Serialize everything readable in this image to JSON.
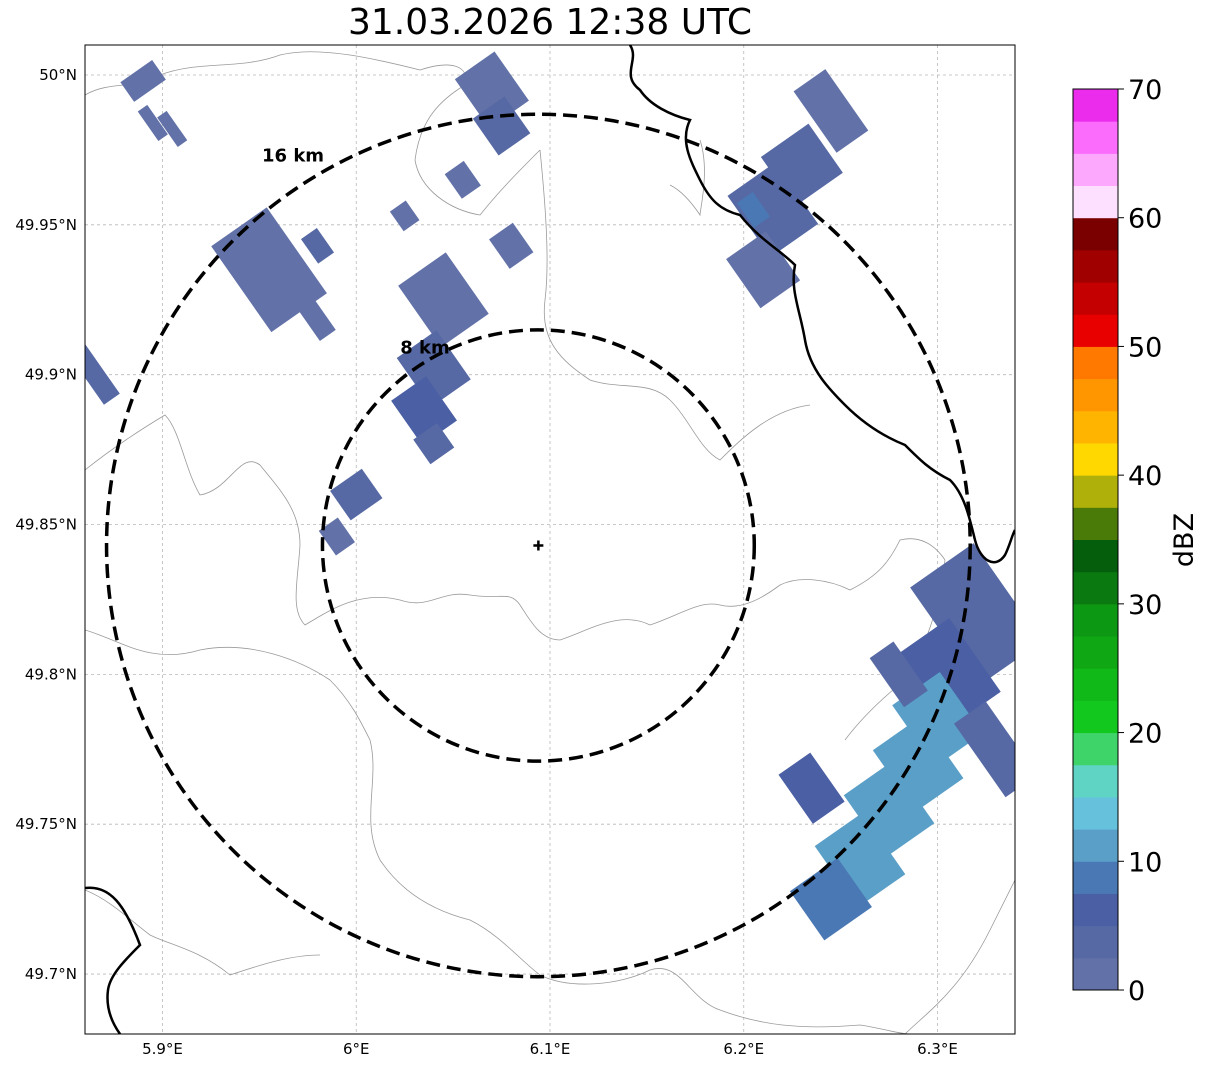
{
  "title": "31.03.2026 12:38 UTC",
  "map": {
    "lon_range": [
      5.86,
      6.34
    ],
    "lat_range": [
      49.68,
      50.01
    ],
    "grid": true,
    "lon_ticks": [
      {
        "value": 5.9,
        "label": "5.9°E"
      },
      {
        "value": 6.0,
        "label": "6°E"
      },
      {
        "value": 6.1,
        "label": "6.1°E"
      },
      {
        "value": 6.2,
        "label": "6.2°E"
      },
      {
        "value": 6.3,
        "label": "6.3°E"
      }
    ],
    "lat_ticks": [
      {
        "value": 50.0,
        "label": "50°N"
      },
      {
        "value": 49.95,
        "label": "49.95°N"
      },
      {
        "value": 49.9,
        "label": "49.9°N"
      },
      {
        "value": 49.85,
        "label": "49.85°N"
      },
      {
        "value": 49.8,
        "label": "49.8°N"
      },
      {
        "value": 49.75,
        "label": "49.75°N"
      },
      {
        "value": 49.7,
        "label": "49.7°N"
      }
    ],
    "radar_site": {
      "lon": 6.094,
      "lat": 49.843,
      "marker": "plus-marker"
    },
    "range_rings": [
      {
        "radius_km": 8,
        "label": "8 km"
      },
      {
        "radius_km": 16,
        "label": "16 km"
      }
    ]
  },
  "colorbar": {
    "label": "dBZ",
    "min": 0,
    "max": 70,
    "tick_labels": [
      "0",
      "10",
      "20",
      "30",
      "40",
      "50",
      "60",
      "70"
    ],
    "tick_values": [
      0,
      10,
      20,
      30,
      40,
      50,
      60,
      70
    ],
    "colors": [
      "#6272a8",
      "#5669a4",
      "#4a5fa4",
      "#4a78b4",
      "#5a9fc8",
      "#66c2dc",
      "#5fd4c4",
      "#3fd46a",
      "#12c81e",
      "#10b818",
      "#0fa814",
      "#0d9814",
      "#0a7a10",
      "#055e0c",
      "#4a7a08",
      "#b0b00a",
      "#ffd800",
      "#ffb400",
      "#ff9600",
      "#ff7800",
      "#e80000",
      "#c40000",
      "#a00000",
      "#7a0000",
      "#fde0ff",
      "#fca8fc",
      "#fc6cfc",
      "#ec2cec"
    ]
  },
  "echoes": [
    {
      "name": "echo-nw-1",
      "lon": 5.89,
      "lat": 49.998,
      "w": 0.02,
      "h": 0.008,
      "dbz": 1
    },
    {
      "name": "echo-nw-2",
      "lon": 5.895,
      "lat": 49.984,
      "w": 0.006,
      "h": 0.012,
      "dbz": 2
    },
    {
      "name": "echo-nw-3",
      "lon": 5.905,
      "lat": 49.982,
      "w": 0.006,
      "h": 0.012,
      "dbz": 2
    },
    {
      "name": "echo-nw-4",
      "lon": 5.955,
      "lat": 49.935,
      "w": 0.035,
      "h": 0.035,
      "dbz": 1
    },
    {
      "name": "echo-nw-5",
      "lon": 5.98,
      "lat": 49.943,
      "w": 0.01,
      "h": 0.01,
      "dbz": 3
    },
    {
      "name": "echo-nw-6",
      "lon": 5.98,
      "lat": 49.918,
      "w": 0.01,
      "h": 0.012,
      "dbz": 2
    },
    {
      "name": "echo-n-1",
      "lon": 6.07,
      "lat": 49.995,
      "w": 0.025,
      "h": 0.02,
      "dbz": 2
    },
    {
      "name": "echo-n-2",
      "lon": 6.075,
      "lat": 49.983,
      "w": 0.02,
      "h": 0.015,
      "dbz": 4
    },
    {
      "name": "echo-n-3",
      "lon": 6.055,
      "lat": 49.965,
      "w": 0.012,
      "h": 0.01,
      "dbz": 2
    },
    {
      "name": "echo-n-4",
      "lon": 6.08,
      "lat": 49.943,
      "w": 0.015,
      "h": 0.012,
      "dbz": 2
    },
    {
      "name": "echo-n-5",
      "lon": 6.025,
      "lat": 49.953,
      "w": 0.01,
      "h": 0.008,
      "dbz": 2
    },
    {
      "name": "echo-c-1",
      "lon": 6.045,
      "lat": 49.925,
      "w": 0.03,
      "h": 0.025,
      "dbz": 2
    },
    {
      "name": "echo-c-2",
      "lon": 6.04,
      "lat": 49.902,
      "w": 0.025,
      "h": 0.02,
      "dbz": 4
    },
    {
      "name": "echo-c-3",
      "lon": 6.035,
      "lat": 49.888,
      "w": 0.022,
      "h": 0.018,
      "dbz": 7
    },
    {
      "name": "echo-c-4",
      "lon": 6.04,
      "lat": 49.877,
      "w": 0.015,
      "h": 0.01,
      "dbz": 3
    },
    {
      "name": "echo-w-1",
      "lon": 6.0,
      "lat": 49.86,
      "w": 0.02,
      "h": 0.012,
      "dbz": 3
    },
    {
      "name": "echo-w-2",
      "lon": 5.99,
      "lat": 49.846,
      "w": 0.012,
      "h": 0.01,
      "dbz": 2
    },
    {
      "name": "echo-w-3",
      "lon": 5.865,
      "lat": 49.9,
      "w": 0.01,
      "h": 0.02,
      "dbz": 4
    },
    {
      "name": "echo-ne-1",
      "lon": 6.245,
      "lat": 49.988,
      "w": 0.02,
      "h": 0.025,
      "dbz": 2
    },
    {
      "name": "echo-ne-2",
      "lon": 6.23,
      "lat": 49.97,
      "w": 0.03,
      "h": 0.02,
      "dbz": 3
    },
    {
      "name": "echo-ne-3",
      "lon": 6.215,
      "lat": 49.955,
      "w": 0.03,
      "h": 0.025,
      "dbz": 4
    },
    {
      "name": "echo-ne-4",
      "lon": 6.21,
      "lat": 49.935,
      "w": 0.025,
      "h": 0.02,
      "dbz": 2
    },
    {
      "name": "echo-ne-5",
      "lon": 6.205,
      "lat": 49.955,
      "w": 0.01,
      "h": 0.01,
      "dbz": 8
    },
    {
      "name": "echo-se-1",
      "lon": 6.32,
      "lat": 49.82,
      "w": 0.04,
      "h": 0.04,
      "dbz": 3
    },
    {
      "name": "echo-se-2",
      "lon": 6.305,
      "lat": 49.8,
      "w": 0.035,
      "h": 0.03,
      "dbz": 6
    },
    {
      "name": "echo-se-3",
      "lon": 6.3,
      "lat": 49.785,
      "w": 0.03,
      "h": 0.025,
      "dbz": 10
    },
    {
      "name": "echo-se-4",
      "lon": 6.29,
      "lat": 49.77,
      "w": 0.03,
      "h": 0.025,
      "dbz": 11
    },
    {
      "name": "echo-se-5",
      "lon": 6.275,
      "lat": 49.755,
      "w": 0.03,
      "h": 0.025,
      "dbz": 12
    },
    {
      "name": "echo-se-6",
      "lon": 6.26,
      "lat": 49.738,
      "w": 0.03,
      "h": 0.025,
      "dbz": 10
    },
    {
      "name": "echo-se-7",
      "lon": 6.245,
      "lat": 49.725,
      "w": 0.03,
      "h": 0.02,
      "dbz": 8
    },
    {
      "name": "echo-se-8",
      "lon": 6.235,
      "lat": 49.762,
      "w": 0.02,
      "h": 0.02,
      "dbz": 5
    },
    {
      "name": "echo-se-9",
      "lon": 6.28,
      "lat": 49.8,
      "w": 0.015,
      "h": 0.02,
      "dbz": 3
    },
    {
      "name": "echo-se-10",
      "lon": 6.33,
      "lat": 49.775,
      "w": 0.02,
      "h": 0.03,
      "dbz": 4
    }
  ]
}
